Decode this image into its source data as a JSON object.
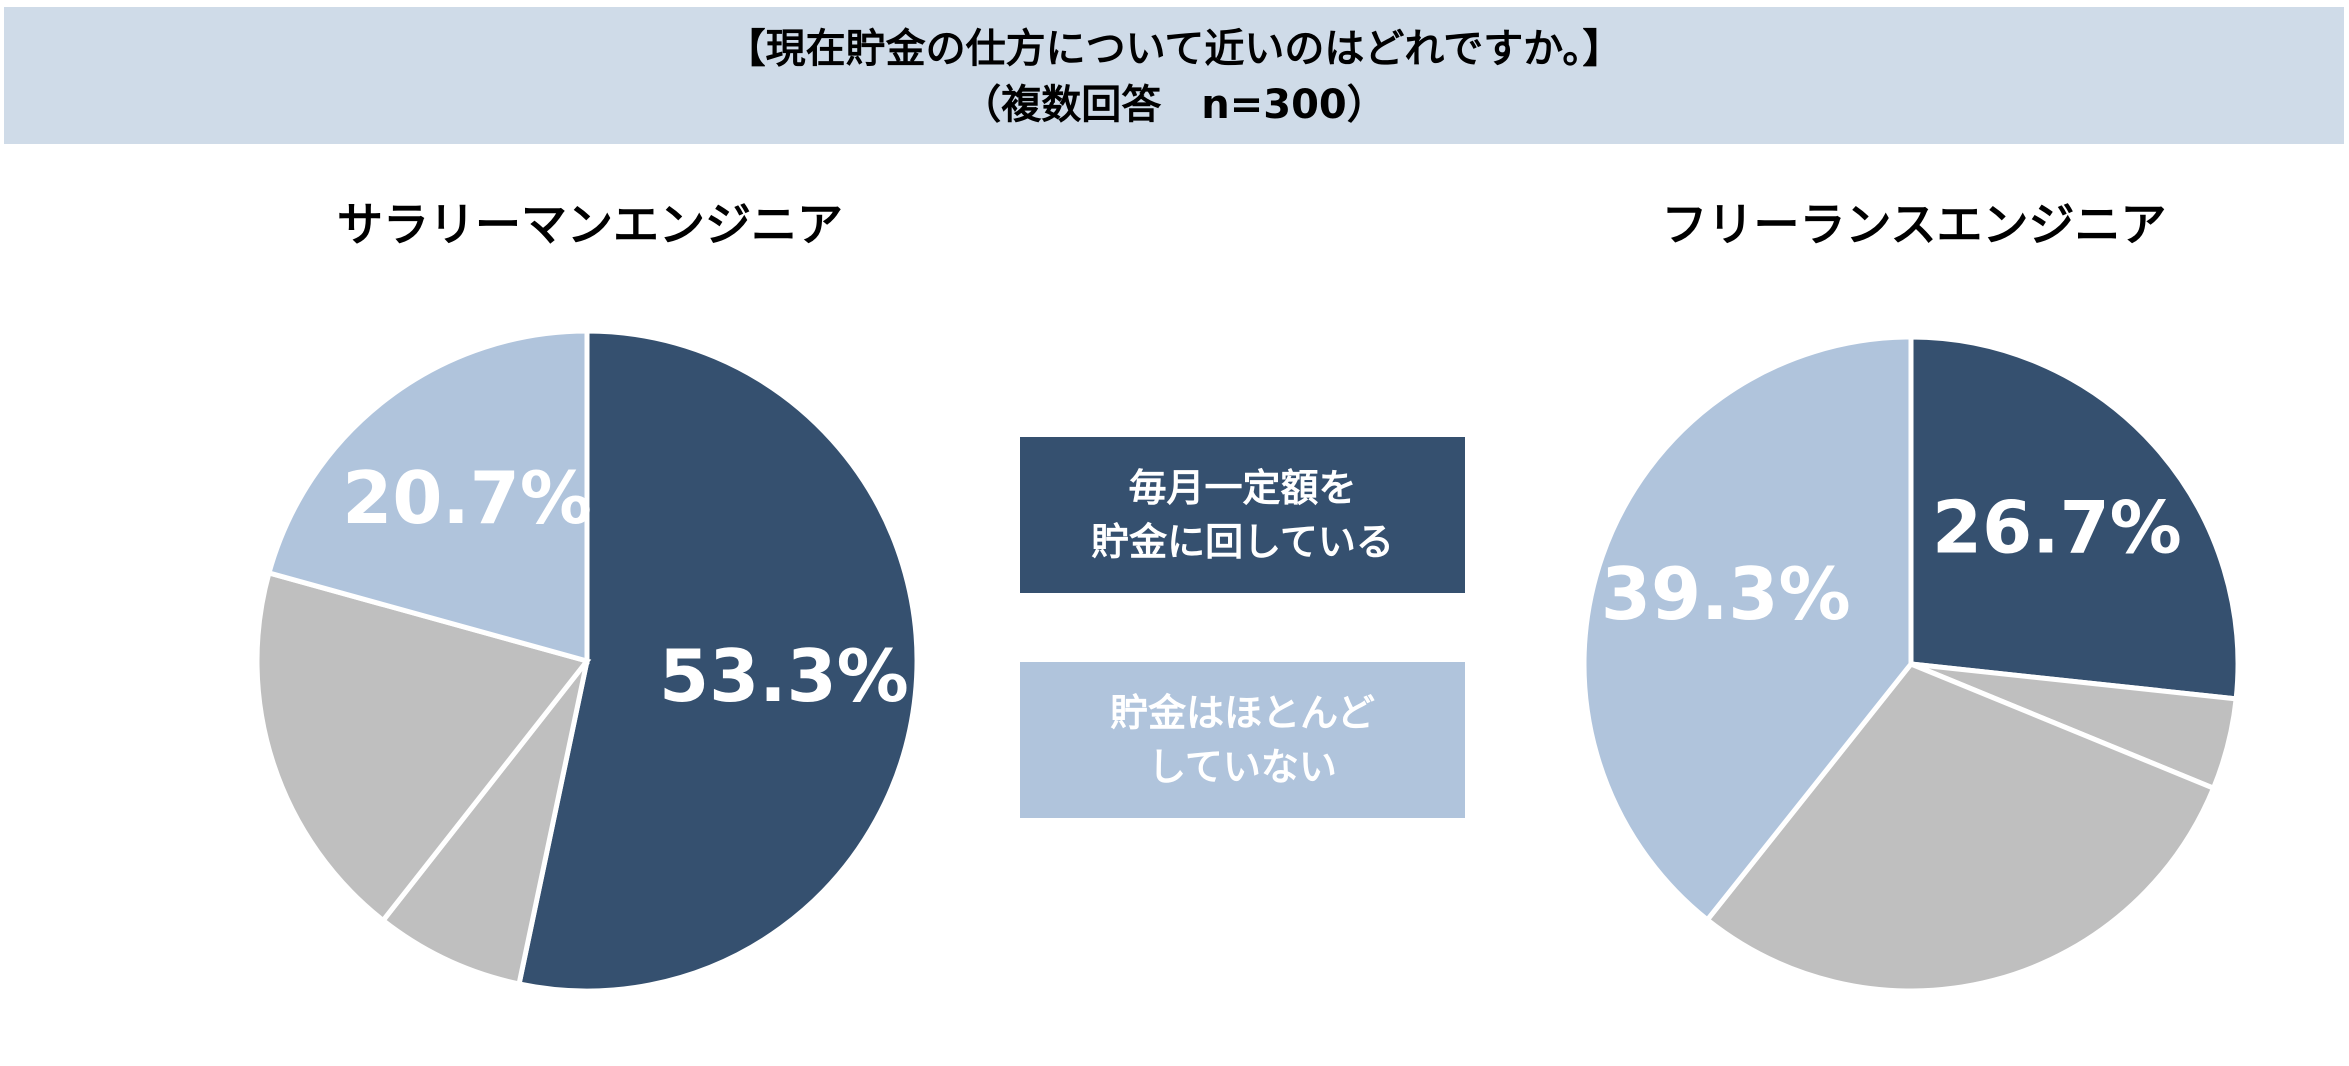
{
  "header": {
    "title": "【現在貯金の仕方について近いのはどれですか。】",
    "subtitle": "（複数回答　n=300）"
  },
  "legend": {
    "items": [
      {
        "label": "毎月一定額を\n貯金に回している",
        "color": "#35506f"
      },
      {
        "label": "貯金はほとんど\nしていない",
        "color": "#b0c4dc"
      }
    ]
  },
  "chart_data": [
    {
      "type": "pie",
      "title": "サラリーマンエンジニア",
      "values": [
        53.3,
        7.3,
        18.7,
        20.7
      ],
      "value_labels": [
        "53.3%",
        null,
        null,
        "20.7%"
      ],
      "colors": [
        "#35506f",
        "#bfbfbf",
        "#bfbfbf",
        "#b0c4dc"
      ]
    },
    {
      "type": "pie",
      "title": "フリーランスエンジニア",
      "values": [
        26.7,
        4.5,
        29.5,
        39.3
      ],
      "value_labels": [
        "26.7%",
        null,
        null,
        "39.3%"
      ],
      "colors": [
        "#35506f",
        "#bfbfbf",
        "#bfbfbf",
        "#b0c4dc"
      ]
    }
  ]
}
